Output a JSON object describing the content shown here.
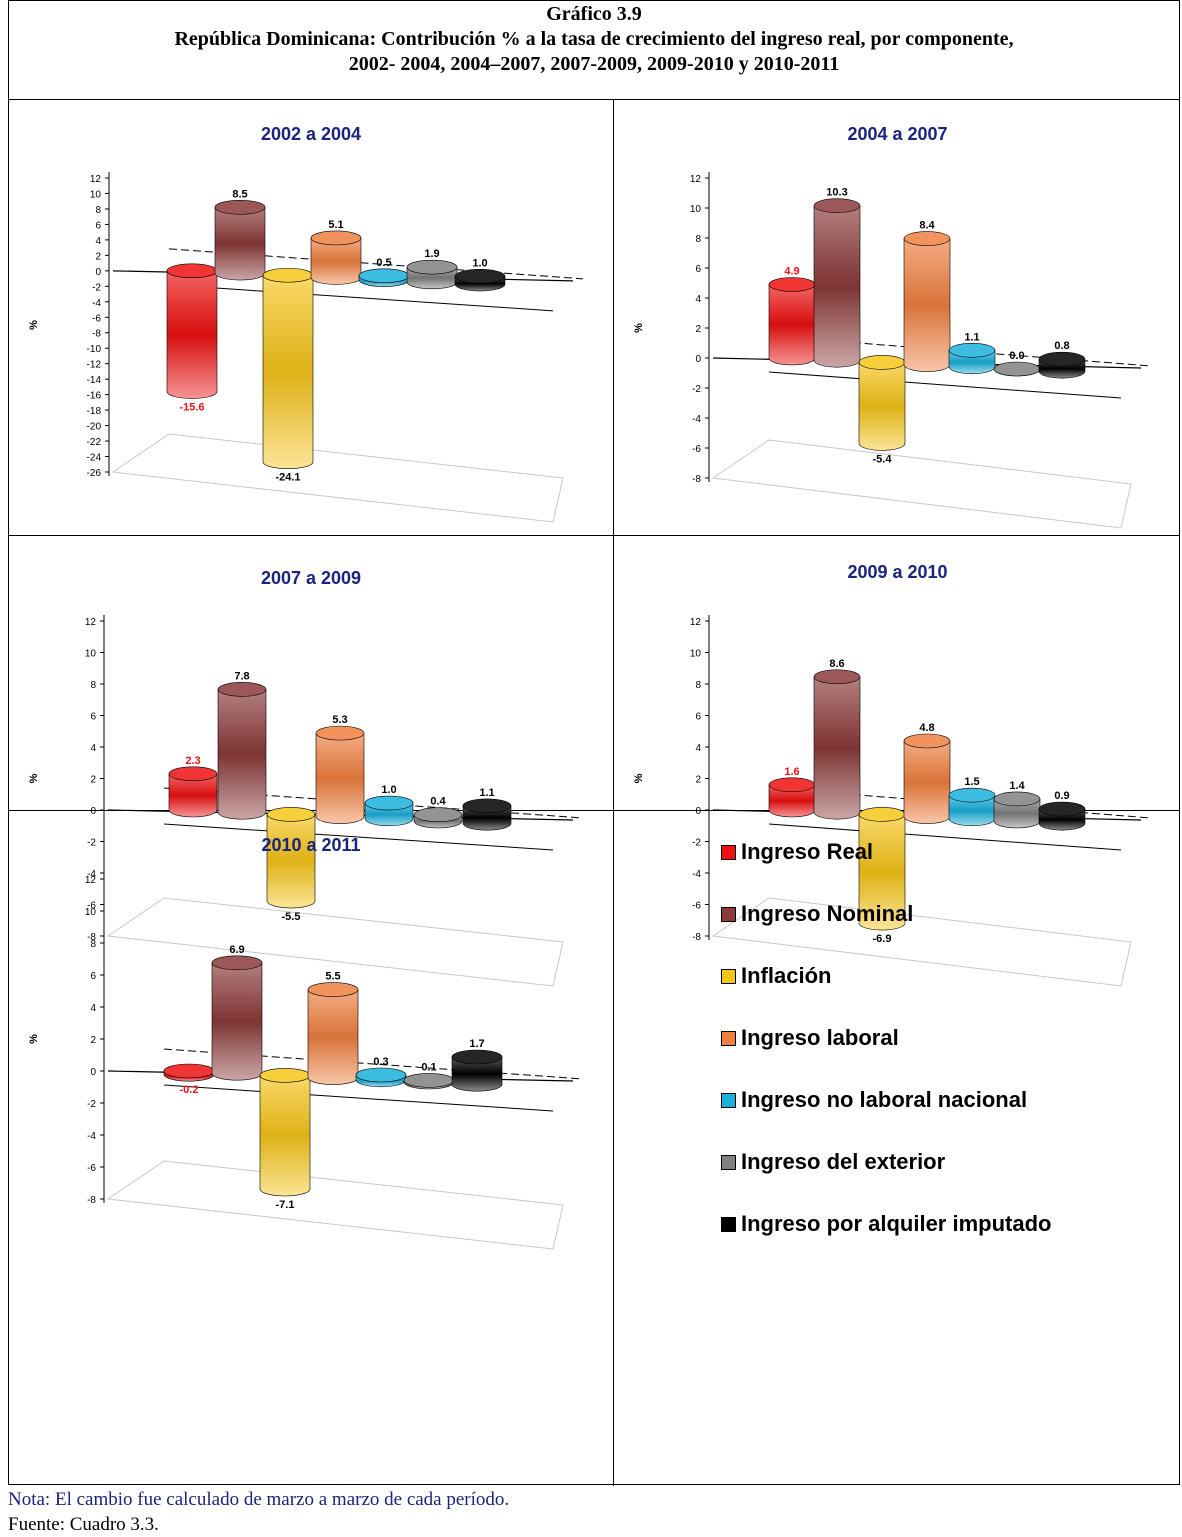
{
  "header": {
    "title": "Gráfico 3.9",
    "subtitle_line1": "República Dominicana: Contribución % a la tasa de crecimiento del ingreso real, por componente,",
    "subtitle_line2": "2002- 2004, 2004–2007, 2007-2009, 2009-2010 y 2010-2011"
  },
  "legend": {
    "items": [
      {
        "label": "Ingreso Real",
        "color": "#ee1111"
      },
      {
        "label": "Ingreso Nominal",
        "color": "#8b3a3a"
      },
      {
        "label": "Inflación",
        "color": "#f5c518"
      },
      {
        "label": "Ingreso laboral",
        "color": "#f08040"
      },
      {
        "label": "Ingreso no laboral nacional",
        "color": "#1ab0dc"
      },
      {
        "label": "Ingreso del exterior",
        "color": "#808080"
      },
      {
        "label": "Ingreso por alquiler imputado",
        "color": "#000000"
      }
    ]
  },
  "footer": {
    "note": "Nota: El cambio fue calculado de marzo a marzo de cada período.",
    "source": "Fuente: Cuadro 3.3."
  },
  "chart_data": [
    {
      "type": "bar",
      "title": "2002 a 2004",
      "ylabel": "%",
      "categories": [
        "Ingreso Real",
        "Ingreso Nominal",
        "Inflación",
        "Ingreso laboral",
        "Ingreso no laboral nacional",
        "Ingreso del exterior",
        "Ingreso por alquiler imputado"
      ],
      "values": [
        -15.6,
        8.5,
        -24.1,
        5.1,
        0.5,
        1.9,
        1.0
      ],
      "data_labels": [
        "-15.6",
        "8.5",
        "-24.1",
        "5.1",
        "0.5",
        "1.9",
        "1.0"
      ],
      "yticks": [
        "12",
        "10",
        "8",
        "6",
        "4",
        "2",
        "0",
        "-2",
        "-4",
        "-6",
        "-8",
        "-10",
        "-12",
        "-14",
        "-16",
        "-18",
        "-20",
        "-22",
        "-24",
        "-26"
      ],
      "ylim": [
        -26,
        12
      ]
    },
    {
      "type": "bar",
      "title": "2004 a 2007",
      "ylabel": "%",
      "categories": [
        "Ingreso Real",
        "Ingreso Nominal",
        "Inflación",
        "Ingreso laboral",
        "Ingreso no laboral nacional",
        "Ingreso del exterior",
        "Ingreso por alquiler imputado"
      ],
      "values": [
        4.9,
        10.3,
        -5.4,
        8.4,
        1.1,
        0.0,
        0.8
      ],
      "data_labels": [
        "4.9",
        "10.3",
        "-5.4",
        "8.4",
        "1.1",
        "0.0",
        "0.8"
      ],
      "yticks": [
        "12",
        "10",
        "8",
        "6",
        "4",
        "2",
        "0",
        "-2",
        "-4",
        "-6",
        "-8"
      ],
      "ylim": [
        -8,
        12
      ]
    },
    {
      "type": "bar",
      "title": "2007 a 2009",
      "ylabel": "%",
      "categories": [
        "Ingreso Real",
        "Ingreso Nominal",
        "Inflación",
        "Ingreso laboral",
        "Ingreso no laboral nacional",
        "Ingreso del exterior",
        "Ingreso por alquiler imputado"
      ],
      "values": [
        2.3,
        7.8,
        -5.5,
        5.3,
        1.0,
        0.4,
        1.1
      ],
      "data_labels": [
        "2.3",
        "7.8",
        "-5.5",
        "5.3",
        "1.0",
        "0.4",
        "1.1"
      ],
      "yticks": [
        "12",
        "10",
        "8",
        "6",
        "4",
        "2",
        "0",
        "-2",
        "-4",
        "-6",
        "-8"
      ],
      "ylim": [
        -8,
        12
      ]
    },
    {
      "type": "bar",
      "title": "2009 a 2010",
      "ylabel": "%",
      "categories": [
        "Ingreso Real",
        "Ingreso Nominal",
        "Inflación",
        "Ingreso laboral",
        "Ingreso no laboral nacional",
        "Ingreso del exterior",
        "Ingreso por alquiler imputado"
      ],
      "values": [
        1.6,
        8.6,
        -6.9,
        4.8,
        1.5,
        1.4,
        0.9
      ],
      "data_labels": [
        "1.6",
        "8.6",
        "-6.9",
        "4.8",
        "1.5",
        "1.4",
        "0.9"
      ],
      "yticks": [
        "12",
        "10",
        "8",
        "6",
        "4",
        "2",
        "0",
        "-2",
        "-4",
        "-6",
        "-8"
      ],
      "ylim": [
        -8,
        12
      ]
    },
    {
      "type": "bar",
      "title": "2010 a 2011",
      "ylabel": "%",
      "categories": [
        "Ingreso Real",
        "Ingreso Nominal",
        "Inflación",
        "Ingreso laboral",
        "Ingreso no laboral nacional",
        "Ingreso del exterior",
        "Ingreso por alquiler imputado"
      ],
      "values": [
        -0.2,
        6.9,
        -7.1,
        5.5,
        0.3,
        0.1,
        1.7
      ],
      "data_labels": [
        "-0.2",
        "6.9",
        "-7.1",
        "5.5",
        "0.3",
        "0.1",
        "1.7"
      ],
      "yticks": [
        "12",
        "10",
        "8",
        "6",
        "4",
        "2",
        "0",
        "-2",
        "-4",
        "-6",
        "-8"
      ],
      "ylim": [
        -8,
        12
      ]
    }
  ]
}
